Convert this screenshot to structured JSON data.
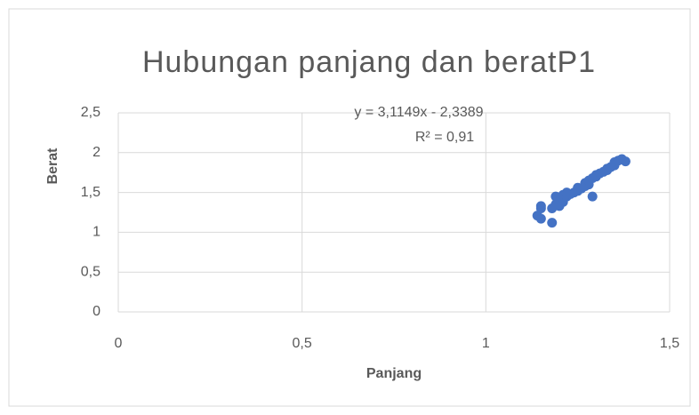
{
  "chart_data": {
    "type": "scatter",
    "title": "Hubungan panjang dan beratP1",
    "xlabel": "Panjang",
    "ylabel": "Berat",
    "annotations": [
      "y = 3,1149x - 2,3389",
      "R² = 0,91"
    ],
    "color": "#4472c4",
    "grid": true,
    "xlim": [
      0,
      1.5
    ],
    "ylim": [
      0,
      2.5
    ],
    "xticks": [
      0,
      {
        "value": 0.5,
        "label": "0,5"
      },
      1,
      {
        "value": 1.5,
        "label": "1,5"
      }
    ],
    "yticks": [
      0,
      {
        "value": 0.5,
        "label": "0,5"
      },
      1,
      {
        "value": 1.5,
        "label": "1,5"
      },
      2,
      {
        "value": 2.5,
        "label": "2,5"
      }
    ],
    "x": [
      1.14,
      1.15,
      1.15,
      1.15,
      1.18,
      1.18,
      1.19,
      1.19,
      1.2,
      1.2,
      1.21,
      1.21,
      1.22,
      1.22,
      1.23,
      1.24,
      1.25,
      1.25,
      1.26,
      1.27,
      1.27,
      1.28,
      1.28,
      1.29,
      1.29,
      1.3,
      1.3,
      1.31,
      1.32,
      1.33,
      1.33,
      1.34,
      1.35,
      1.35,
      1.36,
      1.37,
      1.38
    ],
    "values": [
      1.21,
      1.17,
      1.3,
      1.33,
      1.3,
      1.12,
      1.35,
      1.45,
      1.4,
      1.33,
      1.38,
      1.47,
      1.45,
      1.5,
      1.48,
      1.5,
      1.52,
      1.56,
      1.55,
      1.58,
      1.62,
      1.6,
      1.65,
      1.45,
      1.68,
      1.7,
      1.72,
      1.74,
      1.76,
      1.78,
      1.8,
      1.82,
      1.88,
      1.84,
      1.9,
      1.92,
      1.89
    ]
  }
}
